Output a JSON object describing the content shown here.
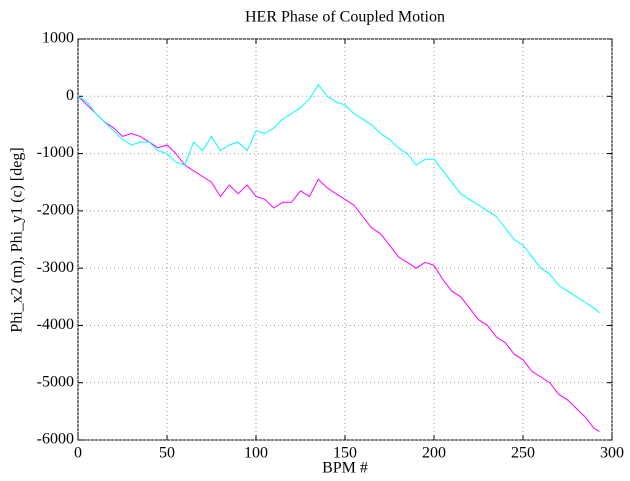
{
  "chart_data": {
    "type": "line",
    "title": "HER Phase of Coupled Motion",
    "xlabel": "BPM #",
    "ylabel": "Phi_x2 (m), Phi_y1 (c) [deg]",
    "x": [
      0,
      5,
      10,
      15,
      20,
      25,
      30,
      35,
      40,
      45,
      50,
      55,
      60,
      65,
      70,
      75,
      80,
      85,
      90,
      95,
      100,
      105,
      110,
      115,
      120,
      125,
      130,
      135,
      140,
      145,
      150,
      155,
      160,
      165,
      170,
      175,
      180,
      185,
      190,
      195,
      200,
      205,
      210,
      215,
      220,
      225,
      230,
      235,
      240,
      245,
      250,
      255,
      260,
      265,
      270,
      275,
      280,
      285,
      290,
      293
    ],
    "series": [
      {
        "color": "#ff00ff",
        "values": [
          0,
          -150,
          -300,
          -450,
          -550,
          -700,
          -650,
          -700,
          -800,
          -900,
          -850,
          -1000,
          -1200,
          -1300,
          -1400,
          -1500,
          -1750,
          -1550,
          -1700,
          -1550,
          -1750,
          -1800,
          -1950,
          -1850,
          -1850,
          -1650,
          -1750,
          -1450,
          -1600,
          -1700,
          -1800,
          -1900,
          -2100,
          -2300,
          -2400,
          -2600,
          -2800,
          -2900,
          -3000,
          -2900,
          -2950,
          -3200,
          -3400,
          -3500,
          -3700,
          -3900,
          -4000,
          -4200,
          -4300,
          -4500,
          -4600,
          -4800,
          -4900,
          -5000,
          -5200,
          -5300,
          -5450,
          -5600,
          -5800,
          -5850
        ]
      },
      {
        "color": "#00ffff",
        "values": [
          0,
          -100,
          -300,
          -450,
          -600,
          -750,
          -850,
          -800,
          -800,
          -950,
          -1000,
          -1150,
          -1200,
          -800,
          -950,
          -700,
          -950,
          -850,
          -800,
          -950,
          -600,
          -650,
          -550,
          -400,
          -300,
          -200,
          -50,
          200,
          0,
          -100,
          -150,
          -300,
          -400,
          -500,
          -650,
          -750,
          -900,
          -1000,
          -1200,
          -1100,
          -1100,
          -1300,
          -1500,
          -1700,
          -1800,
          -1900,
          -2000,
          -2100,
          -2300,
          -2500,
          -2600,
          -2800,
          -3000,
          -3100,
          -3300,
          -3400,
          -3500,
          -3600,
          -3700,
          -3780
        ]
      }
    ],
    "xlim": [
      0,
      300
    ],
    "xticks": [
      0,
      50,
      100,
      150,
      200,
      250,
      300
    ],
    "ylim": [
      -6000,
      1000
    ],
    "yticks": [
      -6000,
      -5000,
      -4000,
      -3000,
      -2000,
      -1000,
      0,
      1000
    ],
    "grid": true
  }
}
